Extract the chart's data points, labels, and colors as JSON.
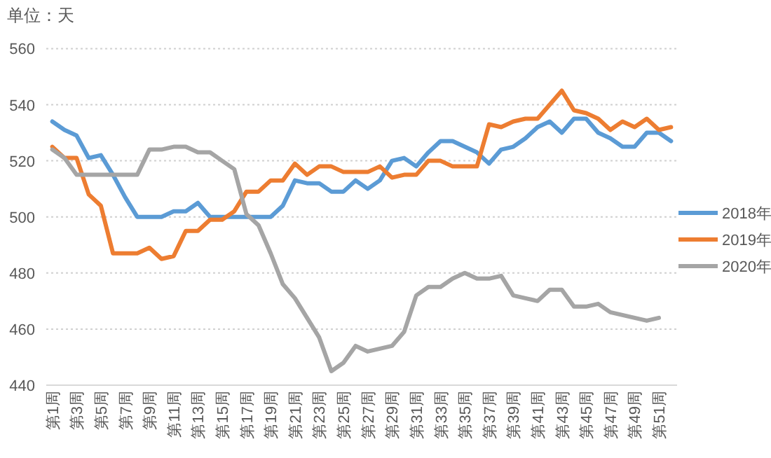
{
  "chart_data": {
    "type": "line",
    "ylabel": "单位：天",
    "categories": [
      "第1周",
      null,
      "第3周",
      null,
      "第5周",
      null,
      "第7周",
      null,
      "第9周",
      null,
      "第11周",
      null,
      "第13周",
      null,
      "第15周",
      null,
      "第17周",
      null,
      "第19周",
      null,
      "第21周",
      null,
      "第23周",
      null,
      "第25周",
      null,
      "第27周",
      null,
      "第29周",
      null,
      "第31周",
      null,
      "第33周",
      null,
      "第35周",
      null,
      "第37周",
      null,
      "第39周",
      null,
      "第41周",
      null,
      "第43周",
      null,
      "第45周",
      null,
      "第47周",
      null,
      "第49周",
      null,
      "第51周",
      null
    ],
    "series": [
      {
        "name": "2018年",
        "color": "#5b9bd5",
        "values": [
          534,
          531,
          529,
          521,
          522,
          515,
          507,
          500,
          500,
          500,
          502,
          502,
          505,
          500,
          500,
          500,
          500,
          500,
          500,
          504,
          513,
          512,
          512,
          509,
          509,
          513,
          510,
          513,
          520,
          521,
          518,
          523,
          527,
          527,
          525,
          523,
          519,
          524,
          525,
          528,
          532,
          534,
          530,
          535,
          535,
          530,
          528,
          525,
          525,
          530,
          530,
          527
        ]
      },
      {
        "name": "2019年",
        "color": "#ed7d31",
        "values": [
          525,
          521,
          521,
          508,
          504,
          487,
          487,
          487,
          489,
          485,
          486,
          495,
          495,
          499,
          499,
          502,
          509,
          509,
          513,
          513,
          519,
          515,
          518,
          518,
          516,
          516,
          516,
          518,
          514,
          515,
          515,
          520,
          520,
          518,
          518,
          518,
          533,
          532,
          534,
          535,
          535,
          540,
          545,
          538,
          537,
          535,
          531,
          534,
          532,
          535,
          531,
          532
        ]
      },
      {
        "name": "2020年",
        "color": "#a5a5a5",
        "values": [
          524,
          521,
          515,
          515,
          515,
          515,
          515,
          515,
          524,
          524,
          525,
          525,
          523,
          523,
          520,
          517,
          501,
          497,
          487,
          476,
          471,
          464,
          457,
          445,
          448,
          454,
          452,
          453,
          454,
          459,
          472,
          475,
          475,
          478,
          480,
          478,
          478,
          479,
          472,
          471,
          470,
          474,
          474,
          468,
          468,
          469,
          466,
          465,
          464,
          463,
          464,
          null
        ]
      }
    ],
    "ylim": [
      440,
      560
    ],
    "yticks": [
      440,
      460,
      480,
      500,
      520,
      540,
      560
    ],
    "grid": "y",
    "legend": "right"
  }
}
